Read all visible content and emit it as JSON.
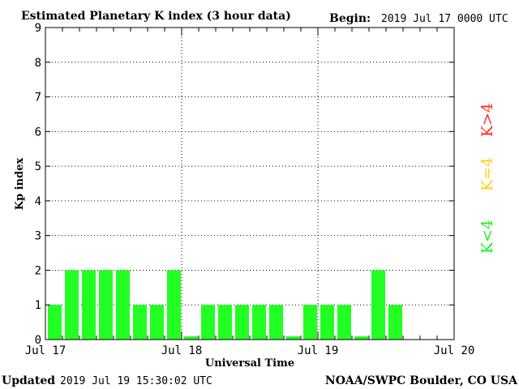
{
  "header": {
    "title": "Estimated Planetary K index (3 hour data)",
    "begin_label": "Begin:",
    "begin_value": "2019 Jul 17 0000 UTC"
  },
  "footer": {
    "updated_label": "Updated",
    "updated_value": "2019 Jul 19 15:30:02 UTC",
    "source": "NOAA/SWPC Boulder, CO USA"
  },
  "legend": {
    "above": "K>4",
    "equal": "K=4",
    "below": "K<4",
    "colors": {
      "above": "#ff3020",
      "equal": "#ffd21e",
      "below": "#22ee22"
    }
  },
  "chart_data": {
    "type": "bar",
    "title": "Estimated Planetary K index (3 hour data)",
    "xlabel": "Universal Time",
    "ylabel": "Kp index",
    "ylim": [
      0,
      9
    ],
    "yticks": [
      0,
      1,
      2,
      3,
      4,
      5,
      6,
      7,
      8,
      9
    ],
    "bins_per_day": 8,
    "days": 3,
    "xtick_labels": [
      "Jul 17",
      "Jul 18",
      "Jul 19",
      "Jul 20"
    ],
    "grid": true,
    "bar_color": "#22ff22",
    "values": [
      1,
      2,
      2,
      2,
      2,
      1,
      1,
      2,
      0,
      1,
      1,
      1,
      1,
      1,
      0,
      1,
      1,
      1,
      0,
      2,
      1
    ]
  }
}
